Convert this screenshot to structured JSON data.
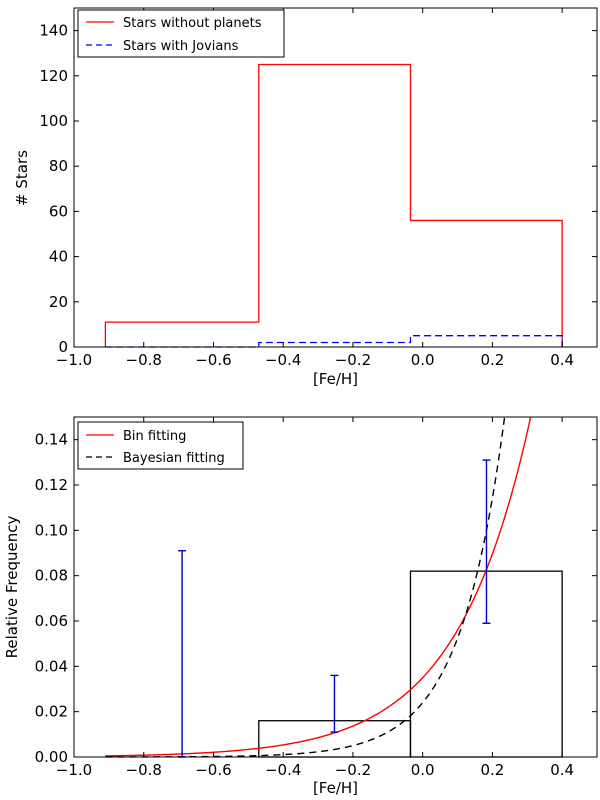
{
  "chart_data": [
    {
      "type": "histogram",
      "xlabel": "[Fe/H]",
      "ylabel": "# Stars",
      "xlim": [
        -1.0,
        0.5
      ],
      "ylim": [
        0,
        150
      ],
      "xticks": [
        "−1.0",
        "−0.8",
        "−0.6",
        "−0.4",
        "−0.2",
        "0.0",
        "0.2",
        "0.4"
      ],
      "xtick_values": [
        -1.0,
        -0.8,
        -0.6,
        -0.4,
        -0.2,
        0.0,
        0.2,
        0.4
      ],
      "yticks": [
        "0",
        "20",
        "40",
        "60",
        "80",
        "100",
        "120",
        "140"
      ],
      "ytick_values": [
        0,
        20,
        40,
        60,
        80,
        100,
        120,
        140
      ],
      "bin_edges": [
        -0.91,
        -0.47,
        -0.035,
        0.4
      ],
      "series": [
        {
          "name": "Stars without planets",
          "values": [
            11,
            125,
            56
          ],
          "color": "#ff0000",
          "style": "solid"
        },
        {
          "name": "Stars with Jovians",
          "values": [
            0,
            2,
            5
          ],
          "color": "#0000ff",
          "style": "dashed"
        }
      ],
      "legend_position": "top-left"
    },
    {
      "type": "line",
      "xlabel": "[Fe/H]",
      "ylabel": "Relative Frequency",
      "xlim": [
        -1.0,
        0.5
      ],
      "ylim": [
        0,
        0.15
      ],
      "xticks": [
        "−1.0",
        "−0.8",
        "−0.6",
        "−0.4",
        "−0.2",
        "0.0",
        "0.2",
        "0.4"
      ],
      "xtick_values": [
        -1.0,
        -0.8,
        -0.6,
        -0.4,
        -0.2,
        0.0,
        0.2,
        0.4
      ],
      "yticks": [
        "0.00",
        "0.02",
        "0.04",
        "0.06",
        "0.08",
        "0.10",
        "0.12",
        "0.14"
      ],
      "ytick_values": [
        0.0,
        0.02,
        0.04,
        0.06,
        0.08,
        0.1,
        0.12,
        0.14
      ],
      "bars": {
        "bin_edges": [
          -0.91,
          -0.47,
          -0.035,
          0.4
        ],
        "values": [
          0.0,
          0.016,
          0.082
        ],
        "color": "#000000"
      },
      "error_bars": [
        {
          "x": -0.69,
          "y": 0.0,
          "low": 0.0,
          "high": 0.091
        },
        {
          "x": -0.253,
          "y": 0.016,
          "low": 0.011,
          "high": 0.036
        },
        {
          "x": 0.183,
          "y": 0.082,
          "low": 0.059,
          "high": 0.131
        }
      ],
      "error_color": "#0000cc",
      "series": [
        {
          "name": "Bin fitting",
          "color": "#ff0000",
          "style": "solid",
          "model": {
            "a": 0.035,
            "b": 4.7
          }
        },
        {
          "name": "Bayesian fitting",
          "color": "#000000",
          "style": "dashed",
          "model": {
            "a": 0.024,
            "b": 7.8
          }
        }
      ],
      "legend_position": "top-left"
    }
  ]
}
